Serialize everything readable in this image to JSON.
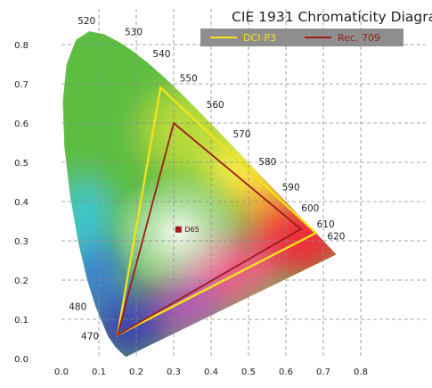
{
  "chart_data": {
    "type": "chromaticity",
    "title": "CIE 1931 Chromaticity Diagram",
    "xlabel": "",
    "ylabel": "",
    "xlim": [
      0.0,
      0.8
    ],
    "ylim": [
      0.0,
      0.8
    ],
    "x_ticks": [
      "0.0",
      "0.1",
      "0.2",
      "0.3",
      "0.4",
      "0.5",
      "0.6",
      "0.7",
      "0.8"
    ],
    "y_ticks": [
      "0.0",
      "0.1",
      "0.2",
      "0.3",
      "0.4",
      "0.5",
      "0.6",
      "0.7",
      "0.8"
    ],
    "grid": true,
    "legend_position": "top-right",
    "spectral_locus": [
      {
        "nm": "470",
        "x": 0.1241,
        "y": 0.0578
      },
      {
        "nm": "480",
        "x": 0.0913,
        "y": 0.1327
      },
      {
        "nm": "520",
        "x": 0.0743,
        "y": 0.8338
      },
      {
        "nm": "530",
        "x": 0.1547,
        "y": 0.8059
      },
      {
        "nm": "540",
        "x": 0.2296,
        "y": 0.7543
      },
      {
        "nm": "550",
        "x": 0.3016,
        "y": 0.6923
      },
      {
        "nm": "560",
        "x": 0.3731,
        "y": 0.6245
      },
      {
        "nm": "570",
        "x": 0.4441,
        "y": 0.5547
      },
      {
        "nm": "580",
        "x": 0.5125,
        "y": 0.4866
      },
      {
        "nm": "590",
        "x": 0.5752,
        "y": 0.4242
      },
      {
        "nm": "600",
        "x": 0.627,
        "y": 0.3725
      },
      {
        "nm": "610",
        "x": 0.6658,
        "y": 0.334
      },
      {
        "nm": "620",
        "x": 0.6915,
        "y": 0.3083
      }
    ],
    "series": [
      {
        "name": "DCI-P3",
        "color": "#f2e21c",
        "points": [
          [
            0.68,
            0.32
          ],
          [
            0.265,
            0.69
          ],
          [
            0.15,
            0.06
          ]
        ]
      },
      {
        "name": "Rec. 709",
        "color": "#9e1b1e",
        "points": [
          [
            0.64,
            0.33
          ],
          [
            0.3,
            0.6
          ],
          [
            0.15,
            0.06
          ]
        ]
      }
    ],
    "white_point": {
      "name": "D65",
      "x": 0.3127,
      "y": 0.329,
      "color": "#a51c1c"
    }
  },
  "colors": {
    "legend_background": "#8e8e8e"
  }
}
